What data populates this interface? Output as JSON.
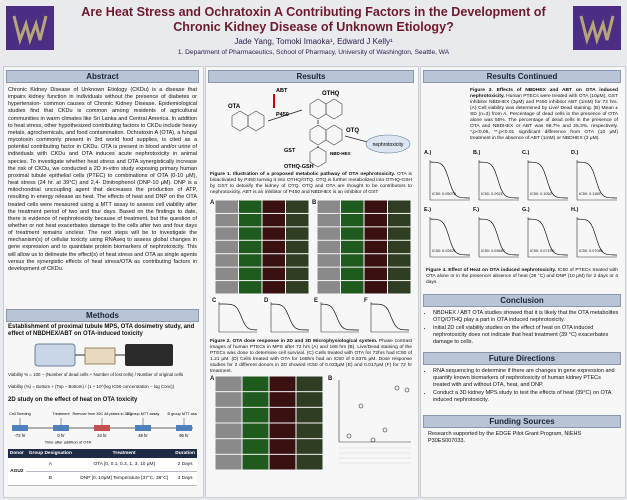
{
  "header": {
    "title": "Are Heat Stress and Ochratoxin A Contributing Factors in the Development of Chronic Kidney Disease of Unknown Etiology?",
    "authors": "Jade Yang, Tomoki Imaoka¹, Edward J Kelly¹",
    "affiliation": "1. Department of Pharmaceutics, School of Pharmacy, University of Washington, Seattle, WA"
  },
  "abstract": {
    "heading": "Abstract",
    "text": "Chronic Kidney Disease of Unknown Etiology (CKDu) is a disease that impairs kidney function in individuals without the presence of diabetes or hypertension- common causes of Chronic Kidney Disease. Epidemiological studies find that CKDu is common among residents of agricultural communities in warm climates like Sri Lanka and Central America. In addition to heat stress, other hypothesized contributing factors to CKDu include heavy metals, agrochemicals, and food contamination. Ochratoxin A (OTA), a fungal mycotoxin commonly present in 3rd world food supplies, is cited as a potential contributing factor in CKDu. OTA is present in blood and/or urine of individuals with CKDu and OTA induces acute nephrotoxicity in animal species. To investigate whether heat stress and OTA synergistically increase the risk of CKDu, we conducted a 2D in-vitro study exposing primary human proximal tubule epithelial cells (PTEC) to combinations of OTA (0-10 μM), heat stress (24 hr. at 39°C) and 2,4- Dinitrophenol (DNP-10 μM). DNP is a mitochondrial uncoupling agent that decreases the production of ATP, resulting in energy release as heat. The effects of heat and DNP on the OTA treated cells were measured using a MTT assay to assess cell viability after the treatment period of two and four days. Based on the findings to date, there is evidence of nephrotoxicity because of treatment, but the question of whether or not heat exacerbates damage to the cells after two and four days of treatment remains unclear. The next steps will be to investigate the mechanism(s) of cellular toxicity using RNAseq to assess global changes in gene expression and to quantitate protein biomarkers of nephrotoxicity. This will allow us to delineate the effect(s) of heat stress and OTA as single agents versus the synergistic effects of heat stress/OTA as contributing factors in development of CKDu."
  },
  "methods": {
    "heading": "Methods",
    "subtitle": "Establishment of proximal tubule MPS, OTA dosimetry study, and effect of NBDHEX/ABT on OTA-induced toxicity",
    "viability_formula": "Viability % = 100 − (Number of dead cells + Number of lost cells) / Number of original cells",
    "fit_formula": "Viability (%) = Bottom + (Top − Bottom) / (1 + 10^(log IC50 concentration − log Conc))",
    "heat_study_title": "2D study on the effect of heat on OTA toxicity",
    "timeline": {
      "events": [
        "Cell Seeding",
        "Treatment",
        "Remove from 39C All plates in 37C",
        "A group MTT assay",
        "B group MTT assay"
      ],
      "times": [
        "-72 hr",
        "0 hr",
        "24 hr",
        "48 hr",
        "96 hr"
      ],
      "axis_label": "Time after addition of OTA"
    },
    "table": {
      "columns": [
        "Donor",
        "Group Designation",
        "Treatment",
        "Duration"
      ],
      "donor": "AGU2",
      "rows": [
        [
          "A",
          "OTA [0, 0.1, 0.3, 1, 3, 10 μM]",
          "2 Days"
        ],
        [
          "B",
          "DNP [0, 10μM] Temperature [37°C, 39°C]",
          "4 Days"
        ]
      ]
    }
  },
  "results": {
    "heading": "Results",
    "figure1": {
      "labels": [
        "OTA",
        "ABT",
        "P450",
        "OTHQ",
        "OTQ",
        "GST",
        "NBD-HEX",
        "OTHQ-GSH",
        "nephrotoxicity"
      ],
      "caption_title": "Figure 1. Illustration of a proposed metabolic pathway of OTA nephrotoxicity.",
      "caption": "OTA is bioactivated by P450 turning it into OTHQ/OTQ. OTQ is further metabolized into OTHQ-GSH by GST to detoxify the kidney of OTQ. OTQ and OTA are thought to be contributors to nephrotoxicity. ABT is an inhibitor of P450 and NBDHEX is an inhibitor of GST"
    },
    "figure2": {
      "panel_labels": [
        "A",
        "B",
        "C",
        "D",
        "E",
        "F"
      ],
      "caption_title": "Figure 2. OTA dose response in 2D and 3D Microphysiological system.",
      "caption": "Phase contrast images of human PTECs in MPS after 72 hrs (A) and 168 hrs (B). Live/Dead staining of the PTECs was done to determine cell survival. (C) Cells treated with OTA for 72hrs had IC50 of 1.21 μM. (D) Cells treated with OTA for 168hrs had an IC50 of 0.0375 μM. Dose response studies for 2 different donors in 2D showed IC50 of 0.023μM (E) and 0.017μM (F) for 72 hr treatment."
    },
    "figure3_panels": [
      "A",
      "B"
    ]
  },
  "results_continued": {
    "heading": "Results Continued",
    "figure3": {
      "caption_title": "Figure 3. Effects of NBDHEX and ABT on OTA induced nephrotoxicity.",
      "caption": "Human PTECs were treated with OTA (10μM), GST inhibitor NBDHEX (3μM) and P450 inhibitor ABT (1mM) for 72 hrs. (A) Cell viability was determined by Live/ Dead staining. (B) Mean ± SD (n=3) from A. Percentage of dead cells in the presence of OTA alone was 55%. The percentage of dead cells in the presence of OTA and NBDHEX or ABT was 98.7% and 25.3%, respectively. *,p<0.05, **,p<0.01 significant difference from OTA (10 μM) treatment in the absence of ABT (1mM) or NBDHEX (3 μM)."
    },
    "figure4": {
      "panels": [
        {
          "label": "A.)",
          "ic50": "IC50: 0.05078"
        },
        {
          "label": "B.)",
          "ic50": "IC50: 0.0921"
        },
        {
          "label": "C.)",
          "ic50": "IC50: 0.1052"
        },
        {
          "label": "D.)",
          "ic50": "IC50: 0.1165"
        },
        {
          "label": "E.)",
          "ic50": "IC50: 0.02621"
        },
        {
          "label": "F.)",
          "ic50": "IC50: 0.03667"
        },
        {
          "label": "G.)",
          "ic50": "IC50: 0.07199"
        },
        {
          "label": "H.)",
          "ic50": "IC50: 0.07085"
        }
      ],
      "caption_title": "Figure 4. Effect of Heat on OTA induced nephrotoxicity.",
      "caption": "IC50 of PTECs treated with OTA alone or in the presence/ absence of heat (39 °C) and DNP (10 μM) for 2 days or 4 days."
    }
  },
  "conclusion": {
    "heading": "Conclusion",
    "bullets": [
      "NBDHEX / ABT OTA studies showed that it is likely that the OTA metabolites OTQ/OTHQ play a part in OTA induced nephrotoxicity.",
      "Initial 2D cell viability studies on the effect of heat on OTA induced nephrotoxicity does not indicate that heat treatment (39 °C) exacerbates damage to cells."
    ]
  },
  "future_directions": {
    "heading": "Future Directions",
    "bullets": [
      "RNA sequencing to determine if there are changes in gene expression and quantify known biomarkers of nephrotoxicity of human kidney PTECs treated with and without OTA, heat, and DNP.",
      "Conduct a 3D kidney MPS study to test the effects of heat (39°C) on OTA induced nephrotoxicity."
    ]
  },
  "funding": {
    "heading": "Funding Sources",
    "text": "Research supported by the EDGE Pilot Grant Program, NIEHS P30ES007033."
  }
}
